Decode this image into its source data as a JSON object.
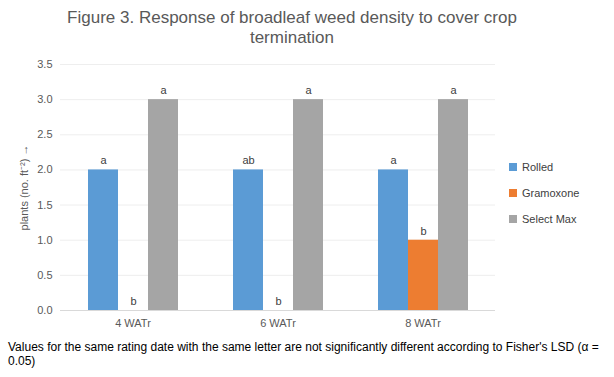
{
  "chart_data": {
    "type": "bar",
    "title": "Figure 3. Response of broadleaf weed density to cover crop termination",
    "ylabel": "plants (no. ft⁻²)",
    "categories": [
      "4 WATr",
      "6 WATr",
      "8 WATr"
    ],
    "series": [
      {
        "name": "Rolled",
        "color": "#5b9bd5",
        "values": [
          2,
          2,
          2
        ],
        "letters": [
          "a",
          "ab",
          "a"
        ]
      },
      {
        "name": "Gramoxone",
        "color": "#ed7d31",
        "values": [
          0,
          0,
          1
        ],
        "letters": [
          "b",
          "b",
          "b"
        ]
      },
      {
        "name": "Select Max",
        "color": "#a5a5a5",
        "values": [
          3,
          3,
          3
        ],
        "letters": [
          "a",
          "a",
          "a"
        ]
      }
    ],
    "ylim": [
      0,
      3.5
    ],
    "yticks": [
      0,
      0.5,
      1,
      1.5,
      2,
      2.5,
      3,
      3.5
    ],
    "grid": true,
    "legend": "right",
    "caption": "Values for the same rating date with the same letter are not significantly different according to Fisher's LSD (α = 0.05)"
  }
}
